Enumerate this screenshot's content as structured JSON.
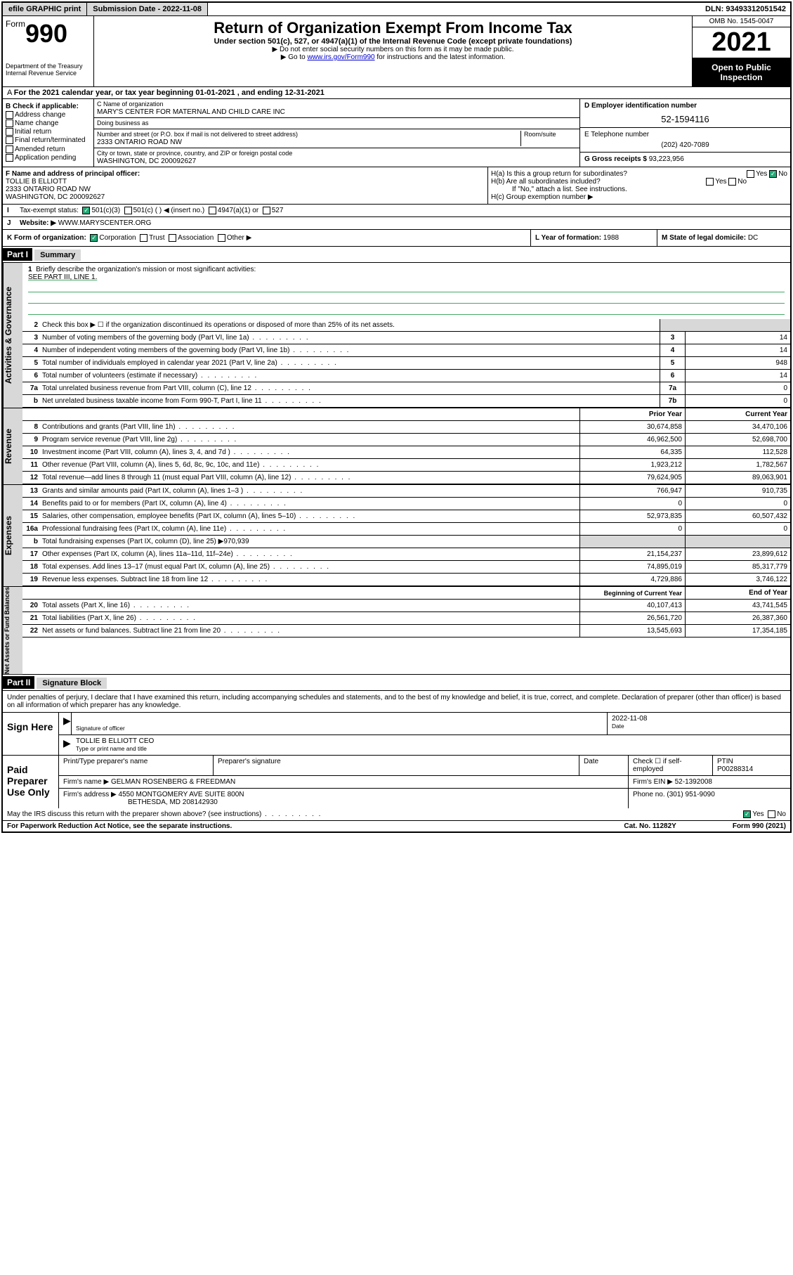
{
  "topbar": {
    "efile": "efile GRAPHIC print",
    "submission_label": "Submission Date - 2022-11-08",
    "dln_label": "DLN: 93493312051542"
  },
  "header": {
    "form_prefix": "Form",
    "form_number": "990",
    "title": "Return of Organization Exempt From Income Tax",
    "subtitle": "Under section 501(c), 527, or 4947(a)(1) of the Internal Revenue Code (except private foundations)",
    "note1": "▶ Do not enter social security numbers on this form as it may be made public.",
    "note2_pre": "▶ Go to ",
    "note2_link": "www.irs.gov/Form990",
    "note2_post": " for instructions and the latest information.",
    "dept": "Department of the Treasury",
    "irs": "Internal Revenue Service",
    "omb": "OMB No. 1545-0047",
    "year": "2021",
    "inspection": "Open to Public Inspection"
  },
  "line_a": "For the 2021 calendar year, or tax year beginning 01-01-2021   , and ending 12-31-2021",
  "section_b": {
    "title": "B Check if applicable:",
    "items": [
      "Address change",
      "Name change",
      "Initial return",
      "Final return/terminated",
      "Amended return",
      "Application pending"
    ]
  },
  "section_c": {
    "name_label": "C Name of organization",
    "name": "MARY'S CENTER FOR MATERNAL AND CHILD CARE INC",
    "dba_label": "Doing business as",
    "addr_label": "Number and street (or P.O. box if mail is not delivered to street address)",
    "room_label": "Room/suite",
    "addr": "2333 ONTARIO ROAD NW",
    "city_label": "City or town, state or province, country, and ZIP or foreign postal code",
    "city": "WASHINGTON, DC  200092627"
  },
  "section_d": {
    "label": "D Employer identification number",
    "ein": "52-1594116"
  },
  "section_e": {
    "label": "E Telephone number",
    "phone": "(202) 420-7089"
  },
  "section_g": {
    "label": "G Gross receipts $",
    "amount": "93,223,956"
  },
  "section_f": {
    "label": "F  Name and address of principal officer:",
    "name": "TOLLIE B ELLIOTT",
    "addr1": "2333 ONTARIO ROAD NW",
    "addr2": "WASHINGTON, DC  200092627"
  },
  "section_h": {
    "ha": "H(a)  Is this a group return for subordinates?",
    "hb": "H(b)  Are all subordinates included?",
    "hb_note": "If \"No,\" attach a list. See instructions.",
    "hc": "H(c)  Group exemption number ▶",
    "yes": "Yes",
    "no": "No"
  },
  "row_i": {
    "lbl": "I",
    "text": "Tax-exempt status:",
    "opts": [
      "501(c)(3)",
      "501(c) (  ) ◀ (insert no.)",
      "4947(a)(1) or",
      "527"
    ]
  },
  "row_j": {
    "lbl": "J",
    "text": "Website: ▶",
    "val": "WWW.MARYSCENTER.ORG"
  },
  "row_k": {
    "text": "K Form of organization:",
    "opts": [
      "Corporation",
      "Trust",
      "Association",
      "Other ▶"
    ],
    "l_label": "L Year of formation:",
    "l_val": "1988",
    "m_label": "M State of legal domicile:",
    "m_val": "DC"
  },
  "part1": {
    "hdr": "Part I",
    "title": "Summary"
  },
  "mission": {
    "num": "1",
    "text": "Briefly describe the organization's mission or most significant activities:",
    "val": "SEE PART III, LINE 1."
  },
  "gov_lines": [
    {
      "num": "2",
      "text": "Check this box ▶ ☐  if the organization discontinued its operations or disposed of more than 25% of its net assets."
    },
    {
      "num": "3",
      "text": "Number of voting members of the governing body (Part VI, line 1a)",
      "box": "3",
      "val": "14"
    },
    {
      "num": "4",
      "text": "Number of independent voting members of the governing body (Part VI, line 1b)",
      "box": "4",
      "val": "14"
    },
    {
      "num": "5",
      "text": "Total number of individuals employed in calendar year 2021 (Part V, line 2a)",
      "box": "5",
      "val": "948"
    },
    {
      "num": "6",
      "text": "Total number of volunteers (estimate if necessary)",
      "box": "6",
      "val": "14"
    },
    {
      "num": "7a",
      "text": "Total unrelated business revenue from Part VIII, column (C), line 12",
      "box": "7a",
      "val": "0"
    },
    {
      "num": "b",
      "text": "Net unrelated business taxable income from Form 990-T, Part I, line 11",
      "box": "7b",
      "val": "0"
    }
  ],
  "col_headers": {
    "prior": "Prior Year",
    "current": "Current Year"
  },
  "revenue_lines": [
    {
      "num": "8",
      "text": "Contributions and grants (Part VIII, line 1h)",
      "prior": "30,674,858",
      "current": "34,470,106"
    },
    {
      "num": "9",
      "text": "Program service revenue (Part VIII, line 2g)",
      "prior": "46,962,500",
      "current": "52,698,700"
    },
    {
      "num": "10",
      "text": "Investment income (Part VIII, column (A), lines 3, 4, and 7d )",
      "prior": "64,335",
      "current": "112,528"
    },
    {
      "num": "11",
      "text": "Other revenue (Part VIII, column (A), lines 5, 6d, 8c, 9c, 10c, and 11e)",
      "prior": "1,923,212",
      "current": "1,782,567"
    },
    {
      "num": "12",
      "text": "Total revenue—add lines 8 through 11 (must equal Part VIII, column (A), line 12)",
      "prior": "79,624,905",
      "current": "89,063,901"
    }
  ],
  "expense_lines": [
    {
      "num": "13",
      "text": "Grants and similar amounts paid (Part IX, column (A), lines 1–3 )",
      "prior": "766,947",
      "current": "910,735"
    },
    {
      "num": "14",
      "text": "Benefits paid to or for members (Part IX, column (A), line 4)",
      "prior": "0",
      "current": "0"
    },
    {
      "num": "15",
      "text": "Salaries, other compensation, employee benefits (Part IX, column (A), lines 5–10)",
      "prior": "52,973,835",
      "current": "60,507,432"
    },
    {
      "num": "16a",
      "text": "Professional fundraising fees (Part IX, column (A), line 11e)",
      "prior": "0",
      "current": "0"
    },
    {
      "num": "b",
      "text": "Total fundraising expenses (Part IX, column (D), line 25) ▶970,939",
      "gray": true
    },
    {
      "num": "17",
      "text": "Other expenses (Part IX, column (A), lines 11a–11d, 11f–24e)",
      "prior": "21,154,237",
      "current": "23,899,612"
    },
    {
      "num": "18",
      "text": "Total expenses. Add lines 13–17 (must equal Part IX, column (A), line 25)",
      "prior": "74,895,019",
      "current": "85,317,779"
    },
    {
      "num": "19",
      "text": "Revenue less expenses. Subtract line 18 from line 12",
      "prior": "4,729,886",
      "current": "3,746,122"
    }
  ],
  "col_headers2": {
    "begin": "Beginning of Current Year",
    "end": "End of Year"
  },
  "asset_lines": [
    {
      "num": "20",
      "text": "Total assets (Part X, line 16)",
      "prior": "40,107,413",
      "current": "43,741,545"
    },
    {
      "num": "21",
      "text": "Total liabilities (Part X, line 26)",
      "prior": "26,561,720",
      "current": "26,387,360"
    },
    {
      "num": "22",
      "text": "Net assets or fund balances. Subtract line 21 from line 20",
      "prior": "13,545,693",
      "current": "17,354,185"
    }
  ],
  "part2": {
    "hdr": "Part II",
    "title": "Signature Block"
  },
  "sig": {
    "declaration": "Under penalties of perjury, I declare that I have examined this return, including accompanying schedules and statements, and to the best of my knowledge and belief, it is true, correct, and complete. Declaration of preparer (other than officer) is based on all information of which preparer has any knowledge.",
    "sign_here": "Sign Here",
    "sig_officer": "Signature of officer",
    "date": "Date",
    "sig_date": "2022-11-08",
    "name_title": "TOLLIE B ELLIOTT CEO",
    "name_title_label": "Type or print name and title",
    "paid": "Paid Preparer Use Only",
    "prep_name_label": "Print/Type preparer's name",
    "prep_sig_label": "Preparer's signature",
    "check_self": "Check ☐ if self-employed",
    "ptin_label": "PTIN",
    "ptin": "P00288314",
    "firm_name_label": "Firm's name   ▶",
    "firm_name": "GELMAN ROSENBERG & FREEDMAN",
    "firm_ein_label": "Firm's EIN ▶",
    "firm_ein": "52-1392008",
    "firm_addr_label": "Firm's address ▶",
    "firm_addr1": "4550 MONTGOMERY AVE SUITE 800N",
    "firm_addr2": "BETHESDA, MD  208142930",
    "phone_label": "Phone no.",
    "phone": "(301) 951-9090",
    "discuss": "May the IRS discuss this return with the preparer shown above? (see instructions)"
  },
  "footer": {
    "left": "For Paperwork Reduction Act Notice, see the separate instructions.",
    "mid": "Cat. No. 11282Y",
    "right": "Form 990 (2021)"
  },
  "side_labels": {
    "gov": "Activities & Governance",
    "rev": "Revenue",
    "exp": "Expenses",
    "net": "Net Assets or Fund Balances"
  }
}
